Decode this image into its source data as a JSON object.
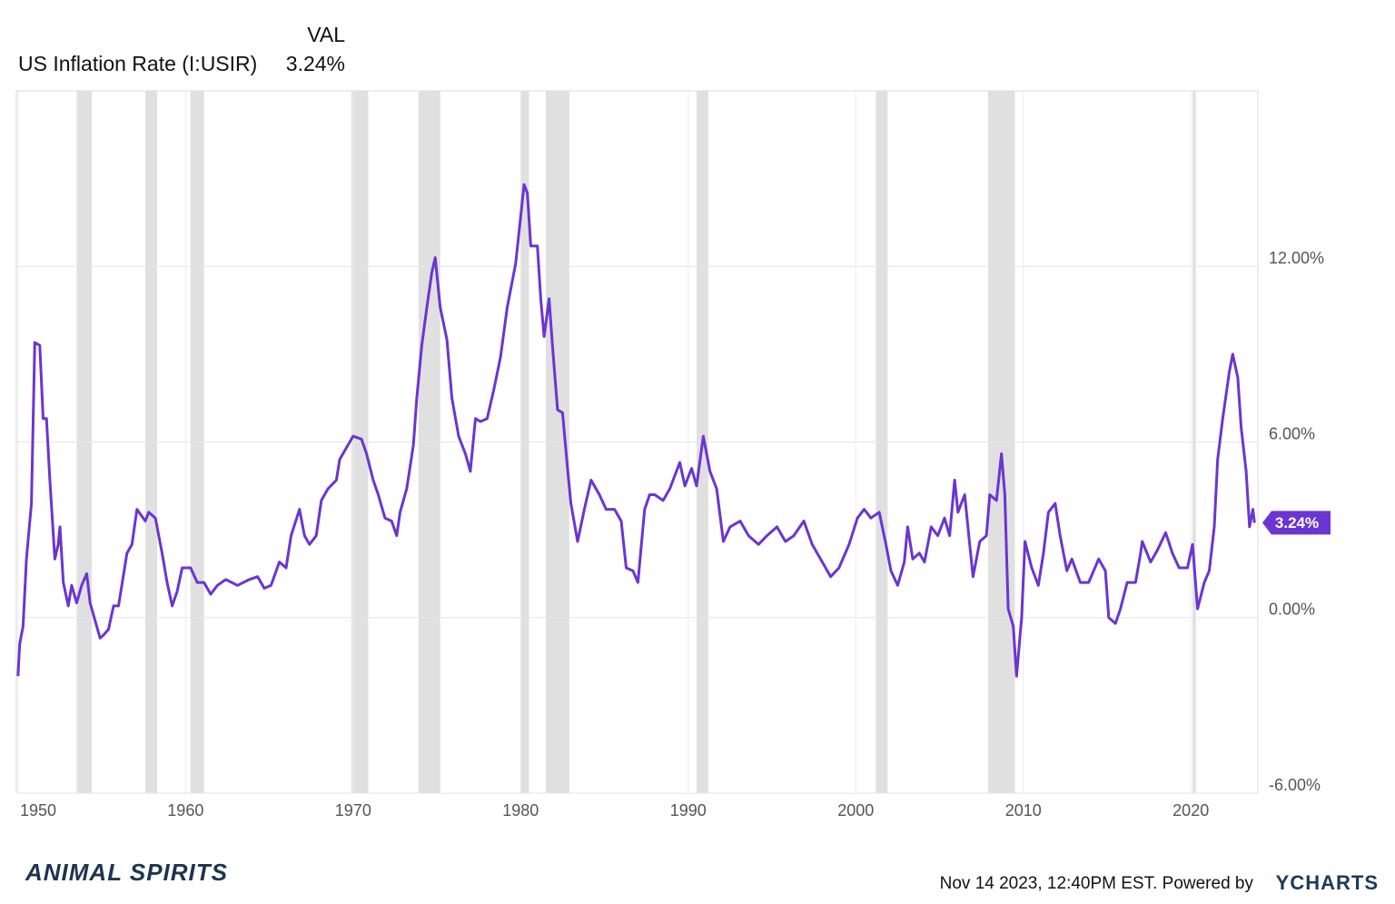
{
  "chart_data": {
    "type": "line",
    "column_header": "VAL",
    "current": {
      "value": 3.24,
      "label": "3.24%"
    },
    "x": [
      1950.0,
      1950.1,
      1950.3,
      1950.5,
      1950.8,
      1951.0,
      1951.3,
      1951.5,
      1951.7,
      1951.9,
      1952.2,
      1952.4,
      1952.5,
      1952.7,
      1953.0,
      1953.2,
      1953.5,
      1953.8,
      1954.1,
      1954.3,
      1954.6,
      1954.9,
      1955.1,
      1955.4,
      1955.7,
      1956.0,
      1956.5,
      1956.8,
      1957.1,
      1957.6,
      1957.8,
      1958.2,
      1958.6,
      1958.9,
      1959.2,
      1959.5,
      1959.8,
      1960.3,
      1960.7,
      1961.1,
      1961.5,
      1961.9,
      1962.4,
      1963.1,
      1963.8,
      1964.3,
      1964.7,
      1965.1,
      1965.6,
      1966.0,
      1966.3,
      1966.8,
      1967.1,
      1967.4,
      1967.8,
      1968.1,
      1968.5,
      1969.0,
      1969.2,
      1969.6,
      1970.0,
      1970.5,
      1970.8,
      1971.2,
      1971.5,
      1971.9,
      1972.3,
      1972.6,
      1972.8,
      1973.2,
      1973.6,
      1973.8,
      1974.1,
      1974.4,
      1974.7,
      1974.9,
      1975.2,
      1975.6,
      1975.9,
      1976.3,
      1976.7,
      1977.0,
      1977.3,
      1977.6,
      1978.0,
      1978.4,
      1978.8,
      1979.2,
      1979.7,
      1980.0,
      1980.2,
      1980.4,
      1980.6,
      1981.0,
      1981.2,
      1981.4,
      1981.7,
      1981.9,
      1982.2,
      1982.5,
      1982.8,
      1983.0,
      1983.4,
      1983.8,
      1984.2,
      1984.7,
      1985.1,
      1985.6,
      1986.0,
      1986.3,
      1986.7,
      1987.0,
      1987.4,
      1987.7,
      1988.0,
      1988.5,
      1988.9,
      1989.5,
      1989.8,
      1990.2,
      1990.5,
      1990.9,
      1991.3,
      1991.7,
      1992.1,
      1992.5,
      1993.1,
      1993.6,
      1994.2,
      1994.7,
      1995.3,
      1995.8,
      1996.3,
      1996.9,
      1997.4,
      1998.0,
      1998.5,
      1999.0,
      1999.6,
      2000.1,
      2000.5,
      2000.9,
      2001.4,
      2001.8,
      2002.1,
      2002.5,
      2002.9,
      2003.1,
      2003.4,
      2003.8,
      2004.1,
      2004.5,
      2004.9,
      2005.3,
      2005.6,
      2005.9,
      2006.1,
      2006.5,
      2006.8,
      2007.0,
      2007.4,
      2007.8,
      2008.0,
      2008.4,
      2008.7,
      2008.9,
      2009.1,
      2009.4,
      2009.6,
      2009.9,
      2010.1,
      2010.5,
      2010.9,
      2011.2,
      2011.5,
      2011.9,
      2012.2,
      2012.6,
      2012.9,
      2013.4,
      2013.9,
      2014.5,
      2014.9,
      2015.1,
      2015.5,
      2015.8,
      2016.2,
      2016.7,
      2017.0,
      2017.1,
      2017.6,
      2018.0,
      2018.5,
      2018.9,
      2019.3,
      2019.8,
      2020.1,
      2020.4,
      2020.8,
      2021.1,
      2021.4,
      2021.6,
      2021.9,
      2022.3,
      2022.5,
      2022.8,
      2023.0,
      2023.3,
      2023.5,
      2023.7,
      2023.8
    ],
    "series": [
      {
        "name": "US Inflation Rate (I:USIR)",
        "color": "#6b35d1",
        "values": [
          -2.0,
          -0.9,
          -0.3,
          2.0,
          3.9,
          9.4,
          9.3,
          6.8,
          6.8,
          4.7,
          2.0,
          2.5,
          3.1,
          1.2,
          0.4,
          1.1,
          0.5,
          1.1,
          1.5,
          0.5,
          -0.1,
          -0.7,
          -0.6,
          -0.4,
          0.4,
          0.4,
          2.2,
          2.5,
          3.7,
          3.3,
          3.6,
          3.4,
          2.2,
          1.2,
          0.4,
          0.9,
          1.7,
          1.7,
          1.2,
          1.2,
          0.8,
          1.1,
          1.3,
          1.1,
          1.3,
          1.4,
          1.0,
          1.1,
          1.9,
          1.7,
          2.8,
          3.7,
          2.8,
          2.5,
          2.8,
          4.0,
          4.4,
          4.7,
          5.4,
          5.8,
          6.2,
          6.1,
          5.6,
          4.7,
          4.2,
          3.4,
          3.3,
          2.8,
          3.6,
          4.4,
          5.9,
          7.5,
          9.3,
          10.6,
          11.8,
          12.3,
          10.6,
          9.5,
          7.5,
          6.2,
          5.6,
          5.0,
          6.8,
          6.7,
          6.8,
          7.8,
          8.9,
          10.6,
          12.1,
          13.7,
          14.8,
          14.5,
          12.7,
          12.7,
          10.9,
          9.6,
          10.9,
          9.3,
          7.1,
          7.0,
          5.1,
          3.9,
          2.6,
          3.7,
          4.7,
          4.2,
          3.7,
          3.7,
          3.3,
          1.7,
          1.6,
          1.2,
          3.7,
          4.2,
          4.2,
          4.0,
          4.4,
          5.3,
          4.5,
          5.1,
          4.5,
          6.2,
          5.0,
          4.4,
          2.6,
          3.1,
          3.3,
          2.8,
          2.5,
          2.8,
          3.1,
          2.6,
          2.8,
          3.3,
          2.5,
          1.9,
          1.4,
          1.7,
          2.5,
          3.4,
          3.7,
          3.4,
          3.6,
          2.5,
          1.6,
          1.1,
          1.9,
          3.1,
          2.0,
          2.2,
          1.9,
          3.1,
          2.8,
          3.4,
          2.8,
          4.7,
          3.6,
          4.2,
          2.5,
          1.4,
          2.6,
          2.8,
          4.2,
          4.0,
          5.6,
          4.2,
          0.3,
          -0.3,
          -2.0,
          0.0,
          2.6,
          1.7,
          1.1,
          2.2,
          3.6,
          3.9,
          2.8,
          1.6,
          2.0,
          1.2,
          1.2,
          2.0,
          1.6,
          0.0,
          -0.2,
          0.3,
          1.2,
          1.2,
          2.2,
          2.6,
          1.9,
          2.3,
          2.9,
          2.2,
          1.7,
          1.7,
          2.5,
          0.3,
          1.2,
          1.6,
          3.1,
          5.4,
          6.8,
          8.4,
          9.0,
          8.2,
          6.5,
          5.0,
          3.1,
          3.7,
          3.24
        ]
      }
    ],
    "recessions": [
      [
        1953.5,
        1954.4
      ],
      [
        1957.6,
        1958.3
      ],
      [
        1960.3,
        1961.1
      ],
      [
        1969.9,
        1970.9
      ],
      [
        1973.9,
        1975.2
      ],
      [
        1980.0,
        1980.5
      ],
      [
        1981.5,
        1982.9
      ],
      [
        1990.5,
        1991.2
      ],
      [
        2001.2,
        2001.9
      ],
      [
        2007.9,
        2009.5
      ],
      [
        2020.1,
        2020.3
      ]
    ],
    "xlim": [
      1949.9,
      2024.0
    ],
    "xticks": [
      1950,
      1960,
      1970,
      1980,
      1990,
      2000,
      2010,
      2020
    ],
    "ylim": [
      -6,
      18
    ],
    "yticks": [
      {
        "value": -6,
        "label": "-6.00%"
      },
      {
        "value": 0,
        "label": "0.00%"
      },
      {
        "value": 6,
        "label": "6.00%"
      },
      {
        "value": 12,
        "label": "12.00%"
      }
    ],
    "grid": true,
    "timestamp": "Nov 14 2023, 12:40PM EST. Powered by",
    "brand": "YCHARTS",
    "logo": "ANIMAL SPIRITS"
  }
}
